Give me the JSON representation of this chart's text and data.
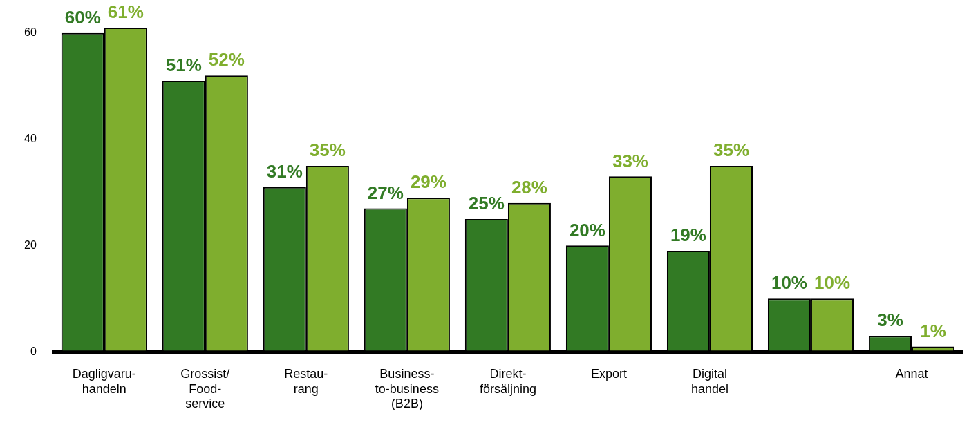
{
  "chart_data": {
    "type": "bar",
    "categories": [
      "Dagligvaru-\nhandeln",
      "Grossist/\nFood-\nservice",
      "Restau-\nrang",
      "Business-\nto-business\n(B2B)",
      "Direkt-\nförsäljning",
      "Export",
      "Digital\nhandel",
      null,
      "Annat"
    ],
    "series": [
      {
        "color": "#327a24",
        "values": [
          60,
          51,
          31,
          27,
          25,
          20,
          19,
          10,
          3
        ],
        "value_labels": [
          "60%",
          "51%",
          "31%",
          "27%",
          "25%",
          "20%",
          "19%",
          "10%",
          "3%"
        ]
      },
      {
        "color": "#7fae2e",
        "values": [
          61,
          52,
          35,
          29,
          28,
          33,
          35,
          10,
          1
        ],
        "value_labels": [
          "61%",
          "52%",
          "35%",
          "29%",
          "28%",
          "33%",
          "35%",
          "10%",
          "1%"
        ]
      }
    ],
    "ylim": [
      0,
      61
    ],
    "yticks": [
      0,
      20,
      40,
      60
    ],
    "grid": false,
    "legend": false
  }
}
